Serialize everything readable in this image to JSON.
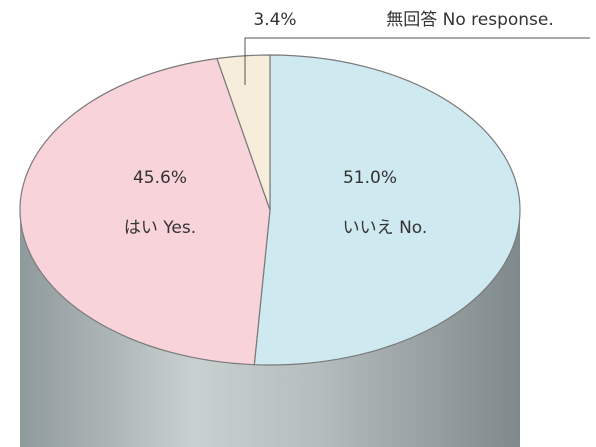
{
  "chart_data": {
    "type": "pie",
    "categories": [
      "いいえ No.",
      "はい Yes.",
      "無回答 No response."
    ],
    "values": [
      51.0,
      45.6,
      3.4
    ],
    "value_labels": [
      "51.0%",
      "45.6%",
      "3.4%"
    ],
    "colors": [
      "#cfe9f1",
      "#f9d3da",
      "#f6eedb"
    ]
  }
}
